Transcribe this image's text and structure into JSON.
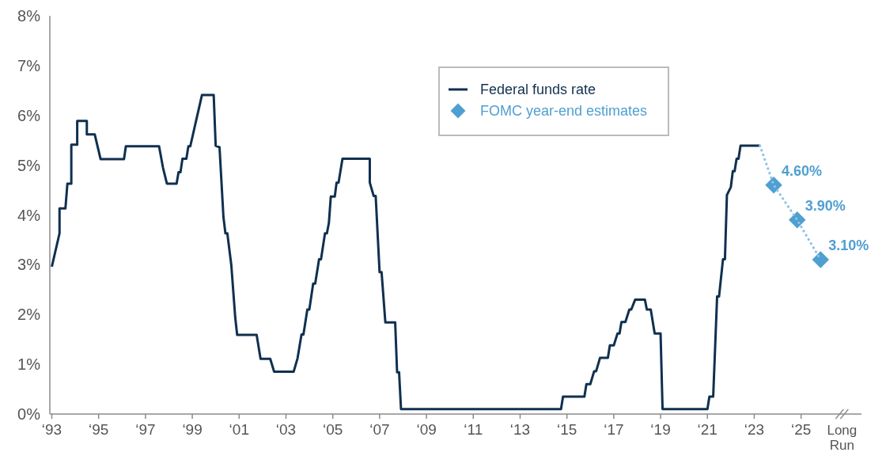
{
  "chart_data": {
    "type": "line",
    "xlim": [
      "1992-12",
      "2027-08"
    ],
    "ylim": [
      0,
      8
    ],
    "xticks": [
      {
        "value": "1993",
        "label": "‘93"
      },
      {
        "value": "1995",
        "label": "‘95"
      },
      {
        "value": "1997",
        "label": "‘97"
      },
      {
        "value": "1999",
        "label": "‘99"
      },
      {
        "value": "2001",
        "label": "‘01"
      },
      {
        "value": "2003",
        "label": "‘03"
      },
      {
        "value": "2005",
        "label": "‘05"
      },
      {
        "value": "2007",
        "label": "‘07"
      },
      {
        "value": "2009",
        "label": "‘09"
      },
      {
        "value": "2011",
        "label": "‘11"
      },
      {
        "value": "2013",
        "label": "‘13"
      },
      {
        "value": "2015",
        "label": "‘15"
      },
      {
        "value": "2017",
        "label": "‘17"
      },
      {
        "value": "2019",
        "label": "‘19"
      },
      {
        "value": "2021",
        "label": "‘21"
      },
      {
        "value": "2023",
        "label": "‘23"
      },
      {
        "value": "2025",
        "label": "‘25"
      },
      {
        "value": "2026-10",
        "label": "Long Run"
      }
    ],
    "yticks": [
      {
        "value": 0,
        "label": "0%"
      },
      {
        "value": 1,
        "label": "1%"
      },
      {
        "value": 2,
        "label": "2%"
      },
      {
        "value": 3,
        "label": "3%"
      },
      {
        "value": 4,
        "label": "4%"
      },
      {
        "value": 5,
        "label": "5%"
      },
      {
        "value": 6,
        "label": "6%"
      },
      {
        "value": 7,
        "label": "7%"
      },
      {
        "value": 8,
        "label": "8%"
      }
    ],
    "legend": "top right",
    "series": [
      {
        "name": "Federal funds rate",
        "color": "#10304f",
        "line_style": "solid",
        "x": [
          "1993-01",
          "1993-05",
          "1993-05",
          "1993-08",
          "1993-09",
          "1993-11",
          "1993-11",
          "1994-02",
          "1994-02",
          "1994-07",
          "1994-07",
          "1994-11",
          "1995-02",
          "1996-02",
          "1996-03",
          "1997-08",
          "1997-10",
          "1997-12",
          "1998-05",
          "1998-06",
          "1998-07",
          "1998-08",
          "1998-10",
          "1998-11",
          "1998-12",
          "1999-03",
          "1999-06",
          "1999-12",
          "2000-01",
          "2000-03",
          "2000-05",
          "2000-06",
          "2000-07",
          "2000-09",
          "2000-11",
          "2000-12",
          "2001-10",
          "2001-12",
          "2002-05",
          "2002-07",
          "2003-05",
          "2003-07",
          "2003-09",
          "2003-10",
          "2003-12",
          "2004-01",
          "2004-03",
          "2004-04",
          "2004-05",
          "2004-06",
          "2004-07",
          "2004-09",
          "2004-10",
          "2004-11",
          "2004-12",
          "2005-02",
          "2005-03",
          "2005-04",
          "2005-06",
          "2006-08",
          "2006-08",
          "2006-10",
          "2006-11",
          "2007-01",
          "2007-02",
          "2007-04",
          "2007-09",
          "2007-10",
          "2007-11",
          "2007-12",
          "2014-10",
          "2014-11",
          "2015-10",
          "2015-11",
          "2016-01",
          "2016-03",
          "2016-04",
          "2016-06",
          "2016-10",
          "2016-11",
          "2017-01",
          "2017-03",
          "2017-04",
          "2017-05",
          "2017-07",
          "2017-09",
          "2017-10",
          "2017-12",
          "2018-05",
          "2018-06",
          "2018-08",
          "2018-10",
          "2019-01",
          "2019-02",
          "2021-01",
          "2021-02",
          "2021-04",
          "2021-06",
          "2021-07",
          "2021-09",
          "2021-10",
          "2021-11",
          "2022-01",
          "2022-02",
          "2022-03",
          "2022-04",
          "2022-05",
          "2022-06",
          "2023-04"
        ],
        "values": [
          2.96,
          3.63,
          4.13,
          4.13,
          4.63,
          4.63,
          5.41,
          5.41,
          5.89,
          5.89,
          5.62,
          5.62,
          5.12,
          5.12,
          5.38,
          5.38,
          4.95,
          4.63,
          4.63,
          4.86,
          4.86,
          5.13,
          5.13,
          5.38,
          5.38,
          5.89,
          6.41,
          6.41,
          5.39,
          5.36,
          3.96,
          3.63,
          3.63,
          2.99,
          1.94,
          1.59,
          1.59,
          1.11,
          1.11,
          0.85,
          0.85,
          1.12,
          1.6,
          1.6,
          2.1,
          2.1,
          2.62,
          2.62,
          2.86,
          3.11,
          3.11,
          3.63,
          3.63,
          3.84,
          4.37,
          4.37,
          4.65,
          4.65,
          5.13,
          5.13,
          4.65,
          4.38,
          4.38,
          2.85,
          2.85,
          1.84,
          1.84,
          0.84,
          0.84,
          0.1,
          0.1,
          0.35,
          0.35,
          0.6,
          0.6,
          0.86,
          0.86,
          1.13,
          1.13,
          1.38,
          1.38,
          1.62,
          1.62,
          1.85,
          1.85,
          2.1,
          2.1,
          2.3,
          2.3,
          2.1,
          2.1,
          1.62,
          1.62,
          0.1,
          0.1,
          0.35,
          0.35,
          2.36,
          2.36,
          3.11,
          3.11,
          4.4,
          4.56,
          4.88,
          4.88,
          5.13,
          5.13,
          5.39,
          5.39
        ]
      },
      {
        "name": "FOMC year-end estimates",
        "type": "scatter",
        "color": "#4f9fd1",
        "marker": "diamond",
        "x": [
          "2023-11",
          "2024-11",
          "2025-11"
        ],
        "values": [
          4.6,
          3.9,
          3.1
        ],
        "value_labels": [
          "4.60%",
          "3.90%",
          "3.10%"
        ]
      },
      {
        "color": "#8cc3e6",
        "line_style": "dotted",
        "x": [
          "2023-04",
          "2023-11",
          "2024-11",
          "2025-11"
        ],
        "values": [
          5.39,
          4.6,
          3.9,
          3.1
        ]
      }
    ]
  }
}
